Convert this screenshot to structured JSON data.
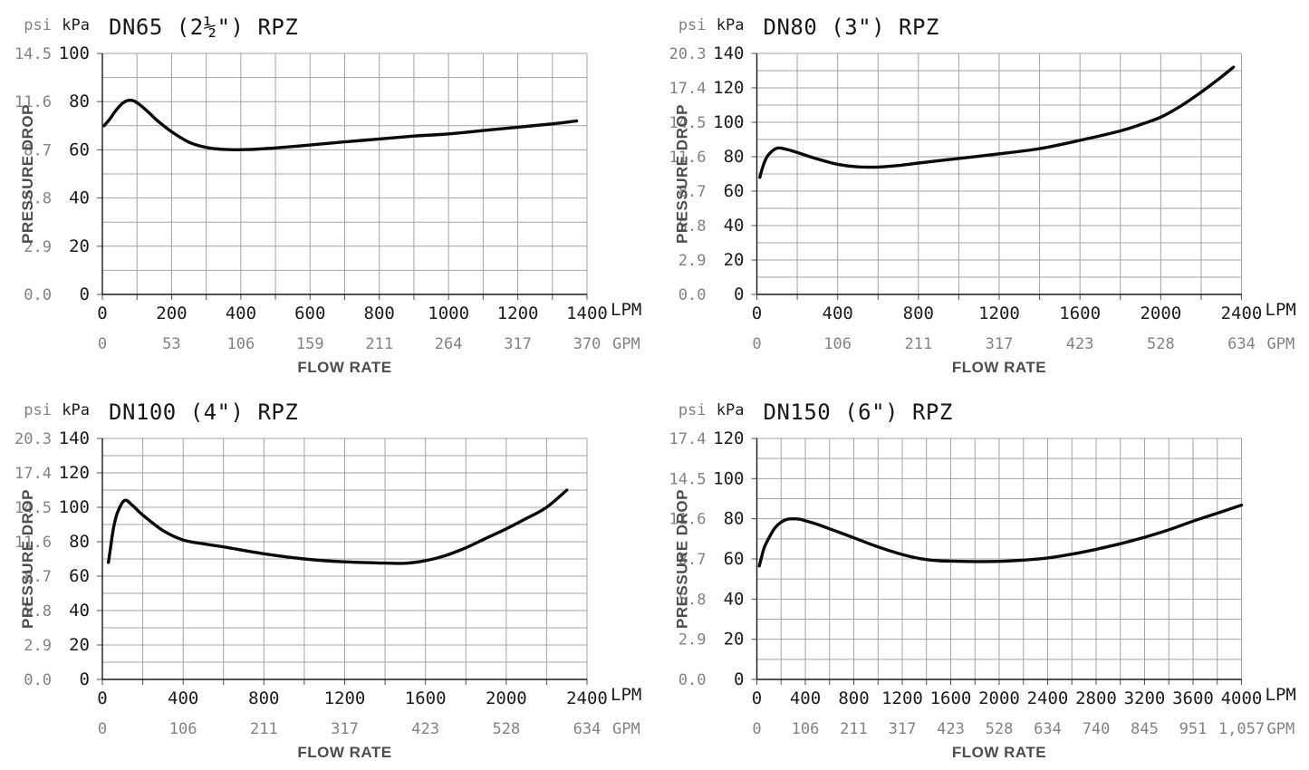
{
  "page": {
    "background": "#ffffff"
  },
  "colors": {
    "grid": "#a3a3a3",
    "axis": "#1a1a1a",
    "curve": "#0a0a0a",
    "primary_text": "#1b1b1b",
    "secondary_text": "#828282",
    "caption_text": "#4d4d4d"
  },
  "chart_data": [
    {
      "type": "line",
      "title": "DN65 (2½\") RPZ",
      "xlabel": "FLOW RATE",
      "ylabel": "PRESSURE DROP",
      "y_axis": {
        "unit_primary": "kPa",
        "unit_secondary": "psi",
        "kpa_max": 100,
        "grid_step_kpa": 10,
        "label_step_kpa": 20,
        "ticks": [
          {
            "kpa": "0",
            "psi": "0.0"
          },
          {
            "kpa": "20",
            "psi": "2.9"
          },
          {
            "kpa": "40",
            "psi": "5.8"
          },
          {
            "kpa": "60",
            "psi": "8.7"
          },
          {
            "kpa": "80",
            "psi": "11.6"
          },
          {
            "kpa": "100",
            "psi": "14.5"
          }
        ]
      },
      "x_axis": {
        "unit_primary": "LPM",
        "unit_secondary": "GPM",
        "lpm_max": 1400,
        "grid_step_lpm": 100,
        "label_step_lpm": 200,
        "lpm_labels": [
          "0",
          "200",
          "400",
          "600",
          "800",
          "1000",
          "1200",
          "1400"
        ],
        "gpm_labels": [
          "0",
          "53",
          "106",
          "159",
          "211",
          "264",
          "317",
          "370"
        ]
      },
      "series": [
        {
          "name": "pressure-drop-curve",
          "points_lpm_kpa": [
            [
              5,
              70
            ],
            [
              20,
              72.5
            ],
            [
              40,
              76.5
            ],
            [
              60,
              79.5
            ],
            [
              80,
              80.6
            ],
            [
              100,
              79.6
            ],
            [
              130,
              76
            ],
            [
              160,
              72
            ],
            [
              200,
              67.5
            ],
            [
              250,
              63.2
            ],
            [
              300,
              61
            ],
            [
              350,
              60.2
            ],
            [
              420,
              60.1
            ],
            [
              500,
              60.8
            ],
            [
              600,
              62
            ],
            [
              700,
              63.3
            ],
            [
              800,
              64.5
            ],
            [
              900,
              65.7
            ],
            [
              1000,
              66.6
            ],
            [
              1100,
              68
            ],
            [
              1200,
              69.4
            ],
            [
              1300,
              70.8
            ],
            [
              1370,
              72
            ]
          ]
        }
      ]
    },
    {
      "type": "line",
      "title": "DN80 (3\") RPZ",
      "xlabel": "FLOW RATE",
      "ylabel": "PRESSURE DROP",
      "y_axis": {
        "unit_primary": "kPa",
        "unit_secondary": "psi",
        "kpa_max": 140,
        "grid_step_kpa": 10,
        "label_step_kpa": 20,
        "ticks": [
          {
            "kpa": "0",
            "psi": "0.0"
          },
          {
            "kpa": "20",
            "psi": "2.9"
          },
          {
            "kpa": "40",
            "psi": "5.8"
          },
          {
            "kpa": "60",
            "psi": "8.7"
          },
          {
            "kpa": "80",
            "psi": "11.6"
          },
          {
            "kpa": "100",
            "psi": "14.5"
          },
          {
            "kpa": "120",
            "psi": "17.4"
          },
          {
            "kpa": "140",
            "psi": "20.3"
          }
        ]
      },
      "x_axis": {
        "unit_primary": "LPM",
        "unit_secondary": "GPM",
        "lpm_max": 2400,
        "grid_step_lpm": 200,
        "label_step_lpm": 400,
        "lpm_labels": [
          "0",
          "400",
          "800",
          "1200",
          "1600",
          "2000",
          "2400"
        ],
        "gpm_labels": [
          "0",
          "106",
          "211",
          "317",
          "423",
          "528",
          "634"
        ]
      },
      "series": [
        {
          "name": "pressure-drop-curve",
          "points_lpm_kpa": [
            [
              15,
              68
            ],
            [
              25,
              72.5
            ],
            [
              40,
              77.5
            ],
            [
              60,
              81.5
            ],
            [
              100,
              85
            ],
            [
              150,
              84.2
            ],
            [
              200,
              82.4
            ],
            [
              300,
              78.7
            ],
            [
              400,
              75.6
            ],
            [
              500,
              74.1
            ],
            [
              600,
              74
            ],
            [
              700,
              74.9
            ],
            [
              800,
              76.3
            ],
            [
              1000,
              79
            ],
            [
              1200,
              81.7
            ],
            [
              1400,
              84.7
            ],
            [
              1600,
              89.5
            ],
            [
              1800,
              95
            ],
            [
              1900,
              98.7
            ],
            [
              2000,
              103
            ],
            [
              2100,
              109.5
            ],
            [
              2200,
              117.5
            ],
            [
              2280,
              124.5
            ],
            [
              2360,
              132
            ]
          ]
        }
      ]
    },
    {
      "type": "line",
      "title": "DN100 (4\") RPZ",
      "xlabel": "FLOW RATE",
      "ylabel": "PRESSURE DROP",
      "y_axis": {
        "unit_primary": "kPa",
        "unit_secondary": "psi",
        "kpa_max": 140,
        "grid_step_kpa": 10,
        "label_step_kpa": 20,
        "ticks": [
          {
            "kpa": "0",
            "psi": "0.0"
          },
          {
            "kpa": "20",
            "psi": "2.9"
          },
          {
            "kpa": "40",
            "psi": "5.8"
          },
          {
            "kpa": "60",
            "psi": "8.7"
          },
          {
            "kpa": "80",
            "psi": "11.6"
          },
          {
            "kpa": "100",
            "psi": "14.5"
          },
          {
            "kpa": "120",
            "psi": "17.4"
          },
          {
            "kpa": "140",
            "psi": "20.3"
          }
        ]
      },
      "x_axis": {
        "unit_primary": "LPM",
        "unit_secondary": "GPM",
        "lpm_max": 2400,
        "grid_step_lpm": 200,
        "label_step_lpm": 400,
        "lpm_labels": [
          "0",
          "400",
          "800",
          "1200",
          "1600",
          "2000",
          "2400"
        ],
        "gpm_labels": [
          "0",
          "106",
          "211",
          "317",
          "423",
          "528",
          "634"
        ]
      },
      "series": [
        {
          "name": "pressure-drop-curve",
          "points_lpm_kpa": [
            [
              30,
              68
            ],
            [
              40,
              76
            ],
            [
              55,
              88
            ],
            [
              75,
              97
            ],
            [
              110,
              104
            ],
            [
              150,
              101
            ],
            [
              200,
              95.5
            ],
            [
              300,
              86.5
            ],
            [
              400,
              81
            ],
            [
              500,
              78.8
            ],
            [
              600,
              77
            ],
            [
              800,
              73
            ],
            [
              1000,
              70
            ],
            [
              1200,
              68.3
            ],
            [
              1400,
              67.6
            ],
            [
              1500,
              67.5
            ],
            [
              1600,
              69
            ],
            [
              1700,
              72
            ],
            [
              1800,
              76.5
            ],
            [
              1900,
              82
            ],
            [
              2000,
              87.5
            ],
            [
              2100,
              93.5
            ],
            [
              2200,
              100
            ],
            [
              2300,
              110
            ]
          ]
        }
      ]
    },
    {
      "type": "line",
      "title": "DN150 (6\") RPZ",
      "xlabel": "FLOW RATE",
      "ylabel": "PRESSURE DROP",
      "y_axis": {
        "unit_primary": "kPa",
        "unit_secondary": "psi",
        "kpa_max": 120,
        "grid_step_kpa": 10,
        "label_step_kpa": 20,
        "ticks": [
          {
            "kpa": "0",
            "psi": "0.0"
          },
          {
            "kpa": "20",
            "psi": "2.9"
          },
          {
            "kpa": "40",
            "psi": "5.8"
          },
          {
            "kpa": "60",
            "psi": "8.7"
          },
          {
            "kpa": "80",
            "psi": "11.6"
          },
          {
            "kpa": "100",
            "psi": "14.5"
          },
          {
            "kpa": "120",
            "psi": "17.4"
          }
        ]
      },
      "x_axis": {
        "unit_primary": "LPM",
        "unit_secondary": "GPM",
        "lpm_max": 4000,
        "grid_step_lpm": 200,
        "label_step_lpm": 400,
        "lpm_labels": [
          "0",
          "400",
          "800",
          "1200",
          "1600",
          "2000",
          "2400",
          "2800",
          "3200",
          "3600",
          "4000"
        ],
        "gpm_labels": [
          "0",
          "106",
          "211",
          "317",
          "423",
          "528",
          "634",
          "740",
          "845",
          "951",
          "1,057"
        ]
      },
      "series": [
        {
          "name": "pressure-drop-curve",
          "points_lpm_kpa": [
            [
              20,
              56.5
            ],
            [
              35,
              60
            ],
            [
              60,
              65.5
            ],
            [
              100,
              70.5
            ],
            [
              150,
              75.5
            ],
            [
              200,
              78.3
            ],
            [
              250,
              79.7
            ],
            [
              300,
              80
            ],
            [
              360,
              79.7
            ],
            [
              400,
              79
            ],
            [
              500,
              77.2
            ],
            [
              600,
              75
            ],
            [
              700,
              72.8
            ],
            [
              800,
              70.5
            ],
            [
              900,
              68.2
            ],
            [
              1000,
              66
            ],
            [
              1100,
              64
            ],
            [
              1200,
              62.2
            ],
            [
              1300,
              60.7
            ],
            [
              1400,
              59.7
            ],
            [
              1500,
              59.1
            ],
            [
              1600,
              58.9
            ],
            [
              1800,
              58.7
            ],
            [
              2000,
              58.8
            ],
            [
              2200,
              59.4
            ],
            [
              2400,
              60.5
            ],
            [
              2600,
              62.4
            ],
            [
              2800,
              64.8
            ],
            [
              3000,
              67.6
            ],
            [
              3200,
              70.8
            ],
            [
              3400,
              74.5
            ],
            [
              3600,
              78.8
            ],
            [
              3800,
              82.8
            ],
            [
              4000,
              86.8
            ]
          ]
        }
      ]
    }
  ]
}
